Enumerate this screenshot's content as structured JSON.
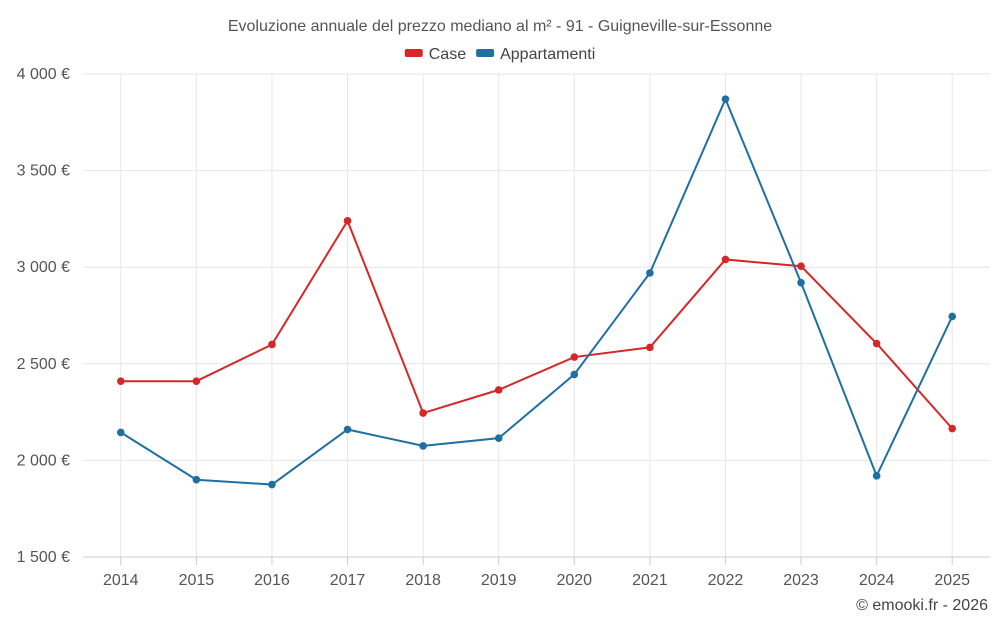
{
  "chart_data": {
    "type": "line",
    "title": "Evoluzione annuale del prezzo mediano al m² - 91 - Guigneville-sur-Essonne",
    "categories": [
      "2014",
      "2015",
      "2016",
      "2017",
      "2018",
      "2019",
      "2020",
      "2021",
      "2022",
      "2023",
      "2024",
      "2025"
    ],
    "series": [
      {
        "name": "Case",
        "color": "#d62728",
        "values": [
          2410,
          2410,
          2600,
          3240,
          2245,
          2365,
          2535,
          2585,
          3040,
          3005,
          2605,
          2165
        ]
      },
      {
        "name": "Appartamenti",
        "color": "#1f6fa3",
        "values": [
          2145,
          1900,
          1875,
          2160,
          2075,
          2115,
          2445,
          2970,
          3870,
          2920,
          1920,
          2745
        ]
      }
    ],
    "ylim": [
      1500,
      4000
    ],
    "yticks": [
      1500,
      2000,
      2500,
      3000,
      3500,
      4000
    ],
    "ytick_labels": [
      "1 500 €",
      "2 000 €",
      "2 500 €",
      "3 000 €",
      "3 500 €",
      "4 000 €"
    ],
    "xlabel": "",
    "ylabel": "",
    "grid": true,
    "legend_position": "top-center"
  },
  "credit": "© emooki.fr - 2026"
}
